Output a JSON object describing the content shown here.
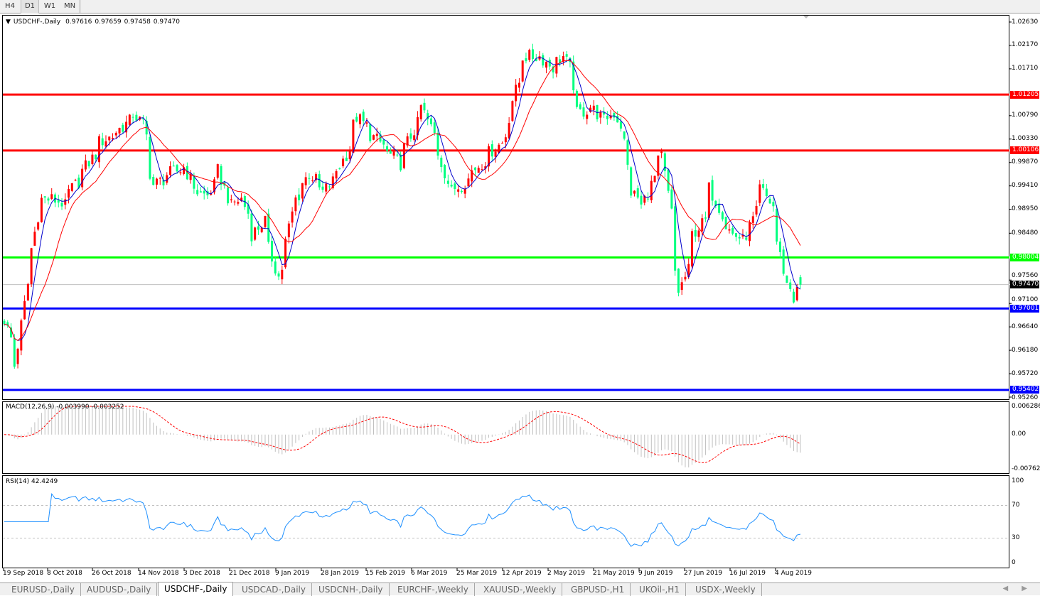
{
  "timeframes": [
    {
      "label": "H4"
    },
    {
      "label": "D1",
      "active": true
    },
    {
      "label": "W1"
    },
    {
      "label": "MN"
    }
  ],
  "legend": {
    "symbol": "USDCHF-,Daily",
    "open": "0.97616",
    "high": "0.97659",
    "low": "0.97458",
    "close": "0.97470"
  },
  "macd_legend": {
    "label": "MACD(12,26,9)",
    "main": "-0.003990",
    "signal": "-0.003252"
  },
  "rsi_legend": {
    "label": "RSI(14)",
    "value": "42.4249"
  },
  "colors": {
    "bull": "#ff0000",
    "bear": "#00ff7f",
    "ma_fast": "#0000cc",
    "ma_slow": "#ff0000",
    "rsi": "#1e90ff",
    "macd_hist": "#c0c0c0",
    "macd_signal": "#ff0000"
  },
  "chart_data": {
    "type": "candlestick",
    "symbol": "USDCHF",
    "timeframe": "Daily",
    "ylim": [
      0.9526,
      1.0263
    ],
    "price_ticks": [
      "1.02630",
      "1.02170",
      "1.01710",
      "1.00790",
      "1.00330",
      "0.99870",
      "0.99410",
      "0.98950",
      "0.98480",
      "0.97560",
      "0.97100",
      "0.96640",
      "0.96180",
      "0.95720",
      "0.95260"
    ],
    "current_price": "0.97470",
    "horizontal_lines": [
      {
        "price": "1.01205",
        "color": "#ff0000"
      },
      {
        "price": "1.00106",
        "color": "#ff0000"
      },
      {
        "price": "0.98004",
        "color": "#00ff00"
      },
      {
        "price": "0.97001",
        "color": "#0000ff"
      },
      {
        "price": "0.95402",
        "color": "#0000ff"
      }
    ],
    "date_ticks": [
      "19 Sep 2018",
      "8 Oct 2018",
      "26 Oct 2018",
      "14 Nov 2018",
      "3 Dec 2018",
      "21 Dec 2018",
      "9 Jan 2019",
      "28 Jan 2019",
      "15 Feb 2019",
      "6 Mar 2019",
      "25 Mar 2019",
      "12 Apr 2019",
      "2 May 2019",
      "21 May 2019",
      "9 Jun 2019",
      "27 Jun 2019",
      "16 Jul 2019",
      "4 Aug 2019"
    ],
    "close_path": [
      [
        "2018-09-19",
        0.9678
      ],
      [
        "2018-09-24",
        0.9587
      ],
      [
        "2018-09-28",
        0.9748
      ],
      [
        "2018-10-01",
        0.9818
      ],
      [
        "2018-10-04",
        0.9915
      ],
      [
        "2018-10-09",
        0.9915
      ],
      [
        "2018-10-15",
        0.9901
      ],
      [
        "2018-10-16",
        0.9929
      ],
      [
        "2018-10-22",
        0.9971
      ],
      [
        "2018-10-29",
        1.0027
      ],
      [
        "2018-11-05",
        1.0048
      ],
      [
        "2018-11-12",
        1.0083
      ],
      [
        "2018-11-15",
        1.0062
      ],
      [
        "2018-11-20",
        0.9943
      ],
      [
        "2018-11-26",
        0.9964
      ],
      [
        "2018-12-03",
        0.9978
      ],
      [
        "2018-12-07",
        0.9929
      ],
      [
        "2018-12-12",
        0.9922
      ],
      [
        "2018-12-17",
        0.9971
      ],
      [
        "2018-12-21",
        0.9901
      ],
      [
        "2018-12-26",
        0.9915
      ],
      [
        "2018-12-31",
        0.9846
      ],
      [
        "2019-01-04",
        0.9873
      ],
      [
        "2019-01-10",
        0.9762
      ],
      [
        "2019-01-14",
        0.9832
      ],
      [
        "2019-01-17",
        0.9915
      ],
      [
        "2019-01-23",
        0.9964
      ],
      [
        "2019-01-29",
        0.9929
      ],
      [
        "2019-02-04",
        0.9971
      ],
      [
        "2019-02-08",
        1.0013
      ],
      [
        "2019-02-12",
        1.0076
      ],
      [
        "2019-02-18",
        1.0041
      ],
      [
        "2019-02-25",
        1.0006
      ],
      [
        "2019-03-01",
        0.9985
      ],
      [
        "2019-03-05",
        1.0027
      ],
      [
        "2019-03-11",
        1.0097
      ],
      [
        "2019-03-14",
        1.0055
      ],
      [
        "2019-03-18",
        1.0006
      ],
      [
        "2019-03-22",
        0.9929
      ],
      [
        "2019-03-27",
        0.9943
      ],
      [
        "2019-04-01",
        0.9971
      ],
      [
        "2019-04-08",
        1.0006
      ],
      [
        "2019-04-15",
        1.0041
      ],
      [
        "2019-04-17",
        1.0111
      ],
      [
        "2019-04-22",
        1.0195
      ],
      [
        "2019-04-29",
        1.0195
      ],
      [
        "2019-05-03",
        1.0174
      ],
      [
        "2019-05-08",
        1.0195
      ],
      [
        "2019-05-13",
        1.0139
      ],
      [
        "2019-05-14",
        1.0083
      ],
      [
        "2019-05-20",
        1.0097
      ],
      [
        "2019-05-24",
        1.0069
      ],
      [
        "2019-05-29",
        1.0083
      ],
      [
        "2019-06-03",
        1.0027
      ],
      [
        "2019-06-05",
        0.9929
      ],
      [
        "2019-06-10",
        0.9901
      ],
      [
        "2019-06-14",
        0.9957
      ],
      [
        "2019-06-18",
        0.9999
      ],
      [
        "2019-06-21",
        0.9888
      ],
      [
        "2019-06-25",
        0.9734
      ],
      [
        "2019-06-28",
        0.9776
      ],
      [
        "2019-07-01",
        0.9846
      ],
      [
        "2019-07-05",
        0.9873
      ],
      [
        "2019-07-08",
        0.9936
      ],
      [
        "2019-07-12",
        0.9888
      ],
      [
        "2019-07-17",
        0.9846
      ],
      [
        "2019-07-22",
        0.9832
      ],
      [
        "2019-07-26",
        0.9888
      ],
      [
        "2019-07-29",
        0.9936
      ],
      [
        "2019-08-02",
        0.9901
      ],
      [
        "2019-08-05",
        0.9832
      ],
      [
        "2019-08-08",
        0.9748
      ],
      [
        "2019-08-12",
        0.972
      ],
      [
        "2019-08-14",
        0.9747
      ]
    ],
    "macd": {
      "ylim": [
        -0.00762,
        0.006286
      ],
      "ticks": [
        "0.006286",
        "0.00",
        "-0.00762"
      ]
    },
    "rsi": {
      "ylim": [
        0,
        100
      ],
      "ticks": [
        "100",
        "70",
        "30",
        "0"
      ],
      "levels": [
        70,
        30
      ]
    }
  },
  "tabs": [
    {
      "label": "EURUSD-,Daily"
    },
    {
      "label": "AUDUSD-,Daily"
    },
    {
      "label": "USDCHF-,Daily",
      "active": true
    },
    {
      "label": "USDCAD-,Daily"
    },
    {
      "label": "USDCNH-,Daily"
    },
    {
      "label": "EURCHF-,Weekly"
    },
    {
      "label": "XAUUSD-,Weekly"
    },
    {
      "label": "GBPUSD-,H1"
    },
    {
      "label": "UKOil-,H1"
    },
    {
      "label": "USDX-,Weekly"
    }
  ],
  "tab_arrows": "◀ ▶"
}
